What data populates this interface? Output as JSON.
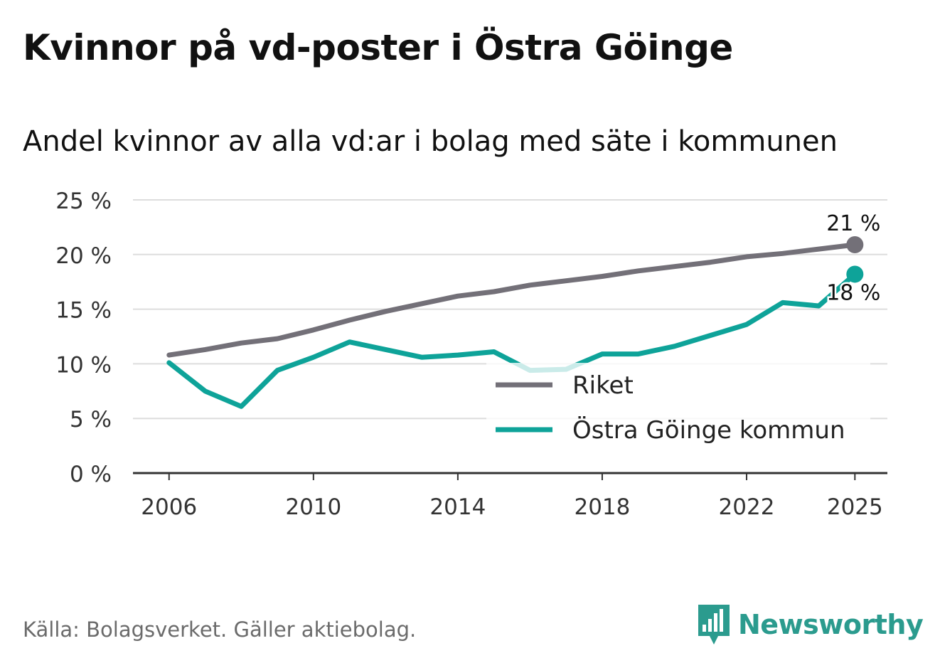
{
  "title": "Kvinnor på vd-poster i Östra Göinge",
  "subtitle": "Andel kvinnor av alla vd:ar i bolag med säte i kommunen",
  "source": "Källa: Bolagsverket. Gäller aktiebolag.",
  "brand": "Newsworthy",
  "colors": {
    "riket": "#737078",
    "kommun": "#0ea399",
    "grid": "#dddddd",
    "axis": "#333333",
    "brand": "#2b9b8e"
  },
  "chart_data": {
    "type": "line",
    "title": "Kvinnor på vd-poster i Östra Göinge",
    "xlabel": "",
    "ylabel": "",
    "x": [
      2006,
      2007,
      2008,
      2009,
      2010,
      2011,
      2012,
      2013,
      2014,
      2015,
      2016,
      2017,
      2018,
      2019,
      2020,
      2021,
      2022,
      2023,
      2024,
      2025
    ],
    "xlim": [
      2005,
      2025.9
    ],
    "ylim": [
      0,
      25
    ],
    "x_ticks": [
      {
        "value": 2006,
        "label": "2006"
      },
      {
        "value": 2010,
        "label": "2010"
      },
      {
        "value": 2014,
        "label": "2014"
      },
      {
        "value": 2018,
        "label": "2018"
      },
      {
        "value": 2022,
        "label": "2022"
      },
      {
        "value": 2025,
        "label": "2025"
      }
    ],
    "y_ticks": [
      {
        "value": 0,
        "label": "0 %"
      },
      {
        "value": 5,
        "label": "5 %"
      },
      {
        "value": 10,
        "label": "10 %"
      },
      {
        "value": 15,
        "label": "15 %"
      },
      {
        "value": 20,
        "label": "20 %"
      },
      {
        "value": 25,
        "label": "25 %"
      }
    ],
    "series": [
      {
        "name": "Riket",
        "key": "riket",
        "values": [
          10.8,
          11.3,
          11.9,
          12.3,
          13.1,
          14.0,
          14.8,
          15.5,
          16.2,
          16.6,
          17.2,
          17.6,
          18.0,
          18.5,
          18.9,
          19.3,
          19.8,
          20.1,
          20.5,
          20.9
        ],
        "end_label": "21 %"
      },
      {
        "name": "Östra Göinge kommun",
        "key": "kommun",
        "values": [
          10.1,
          7.5,
          6.1,
          9.4,
          10.6,
          12.0,
          11.3,
          10.6,
          10.8,
          11.1,
          9.4,
          9.5,
          10.9,
          10.9,
          11.6,
          12.6,
          13.6,
          15.6,
          15.3,
          18.2
        ],
        "end_label": "18 %"
      }
    ],
    "legend": [
      {
        "label": "Riket",
        "key": "riket"
      },
      {
        "label": "Östra Göinge kommun",
        "key": "kommun"
      }
    ],
    "legend_position": "bottom-right, inside plot",
    "grid": true
  }
}
